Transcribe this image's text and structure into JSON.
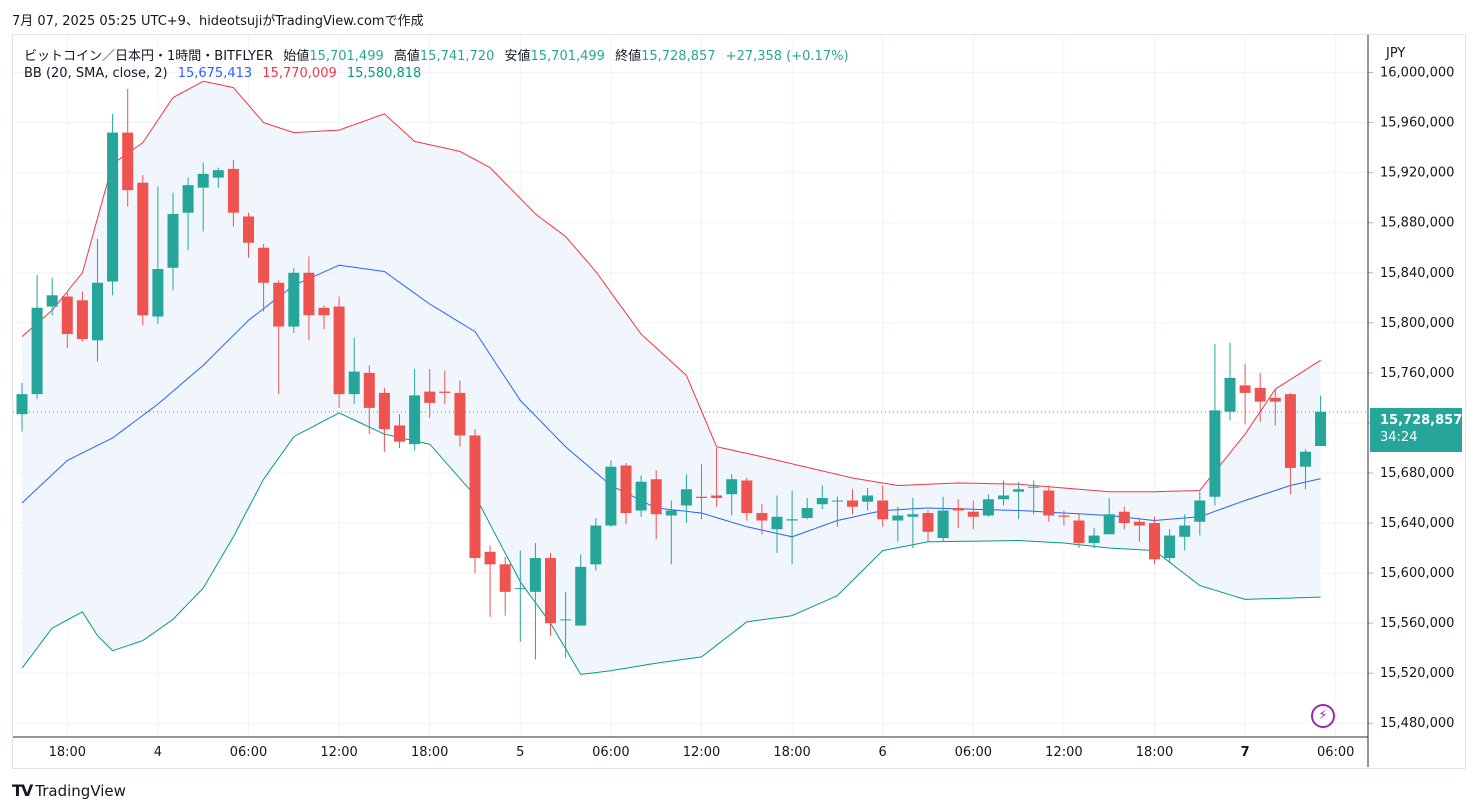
{
  "header": {
    "caption": "7月 07, 2025 05:25 UTC+9、hideotsujiがTradingView.comで作成"
  },
  "legend": {
    "symbol": "ビットコイン／日本円・1時間・BITFLYER",
    "open_label": "始値",
    "open_value": "15,701,499",
    "high_label": "高値",
    "high_value": "15,741,720",
    "low_label": "安値",
    "low_value": "15,701,499",
    "close_label": "終値",
    "close_value": "15,728,857",
    "change": "+27,358 (+0.17%)"
  },
  "indicator": {
    "label": "BB (20, SMA, close, 2)",
    "basis": "15,675,413",
    "upper": "15,770,009",
    "lower": "15,580,818"
  },
  "currency": "JPY",
  "last_price_tag": {
    "price": "15,728,857",
    "countdown": "34:24"
  },
  "footer": {
    "brand": "TradingView",
    "logo_icon": "tradingview-logo-icon"
  },
  "colors": {
    "up": "#26a69a",
    "down": "#ef5350",
    "basis": "#2962ff",
    "upper": "#f23645",
    "lower": "#089981",
    "band_fill": "#eef4fb"
  },
  "chart_data": {
    "type": "candlestick",
    "symbol": "BTC/JPY",
    "interval": "1h",
    "x_axis": {
      "labels": [
        "18:00",
        "4",
        "06:00",
        "12:00",
        "18:00",
        "5",
        "06:00",
        "12:00",
        "18:00",
        "6",
        "06:00",
        "12:00",
        "18:00",
        "7",
        "06:00"
      ],
      "label_index": [
        3,
        9,
        15,
        21,
        27,
        33,
        39,
        45,
        51,
        57,
        63,
        69,
        75,
        81,
        87
      ],
      "bold": [
        "7"
      ]
    },
    "y_axis": {
      "ticks": [
        16000000,
        15960000,
        15920000,
        15880000,
        15840000,
        15800000,
        15760000,
        15720000,
        15680000,
        15640000,
        15600000,
        15560000,
        15520000,
        15480000
      ],
      "tick_labels": [
        "16,000,000",
        "15,960,000",
        "15,920,000",
        "15,880,000",
        "15,840,000",
        "15,800,000",
        "15,760,000",
        "",
        "15,680,000",
        "15,640,000",
        "15,600,000",
        "15,560,000",
        "15,520,000",
        "15,480,000"
      ],
      "ylim": [
        15469000,
        16030000
      ],
      "side": "right"
    },
    "grid": true,
    "last_price_line": 15728857,
    "candles": [
      [
        15727000,
        15743000,
        15752000,
        15713000
      ],
      [
        15743000,
        15812000,
        15838000,
        15739000
      ],
      [
        15813000,
        15822000,
        15836000,
        15806000
      ],
      [
        15821000,
        15791000,
        15824000,
        15780000
      ],
      [
        15818000,
        15787000,
        15825000,
        15785000
      ],
      [
        15786000,
        15832000,
        15867000,
        15769000
      ],
      [
        15833000,
        15952000,
        15967000,
        15822000
      ],
      [
        15952000,
        15906000,
        15987000,
        15893000
      ],
      [
        15912000,
        15806000,
        15918000,
        15798000
      ],
      [
        15805000,
        15843000,
        15909000,
        15799000
      ],
      [
        15844000,
        15887000,
        15904000,
        15826000
      ],
      [
        15888000,
        15910000,
        15916000,
        15858000
      ],
      [
        15908000,
        15919000,
        15928000,
        15873000
      ],
      [
        15916000,
        15922000,
        15924000,
        15908000
      ],
      [
        15923000,
        15888000,
        15930000,
        15877000
      ],
      [
        15885000,
        15864000,
        15888000,
        15852000
      ],
      [
        15860000,
        15832000,
        15863000,
        15809000
      ],
      [
        15832000,
        15797000,
        15834000,
        15743000
      ],
      [
        15797000,
        15840000,
        15844000,
        15792000
      ],
      [
        15840000,
        15806000,
        15853000,
        15786000
      ],
      [
        15812000,
        15806000,
        15814000,
        15795000
      ],
      [
        15813000,
        15743000,
        15821000,
        15732000
      ],
      [
        15743000,
        15761000,
        15788000,
        15735000
      ],
      [
        15760000,
        15732000,
        15766000,
        15711000
      ],
      [
        15744000,
        15715000,
        15748000,
        15697000
      ],
      [
        15718000,
        15705000,
        15727000,
        15700000
      ],
      [
        15703000,
        15742000,
        15763000,
        15698000
      ],
      [
        15745000,
        15736000,
        15763000,
        15724000
      ],
      [
        15745000,
        15744000,
        15762000,
        15735000
      ],
      [
        15744000,
        15710000,
        15754000,
        15701000
      ],
      [
        15710000,
        15612000,
        15715000,
        15600000
      ],
      [
        15617000,
        15607000,
        15622000,
        15565000
      ],
      [
        15607000,
        15585000,
        15613000,
        15566000
      ],
      [
        15588000,
        15588000,
        15618000,
        15545000
      ],
      [
        15585000,
        15612000,
        15624000,
        15531000
      ],
      [
        15612000,
        15560000,
        15616000,
        15550000
      ],
      [
        15563000,
        15563000,
        15585000,
        15532000
      ],
      [
        15558000,
        15605000,
        15615000,
        15558000
      ],
      [
        15607000,
        15638000,
        15644000,
        15602000
      ],
      [
        15638000,
        15685000,
        15690000,
        15637000
      ],
      [
        15686000,
        15648000,
        15688000,
        15639000
      ],
      [
        15650000,
        15673000,
        15678000,
        15645000
      ],
      [
        15675000,
        15647000,
        15682000,
        15627000
      ],
      [
        15646000,
        15650000,
        15658000,
        15607000
      ],
      [
        15654000,
        15667000,
        15679000,
        15640000
      ],
      [
        15661000,
        15660000,
        15687000,
        15643000
      ],
      [
        15662000,
        15660000,
        15700000,
        15653000
      ],
      [
        15663000,
        15675000,
        15679000,
        15646000
      ],
      [
        15674000,
        15648000,
        15676000,
        15642000
      ],
      [
        15648000,
        15642000,
        15655000,
        15631000
      ],
      [
        15635000,
        15645000,
        15662000,
        15616000
      ],
      [
        15642000,
        15643000,
        15666000,
        15607000
      ],
      [
        15644000,
        15652000,
        15660000,
        15643000
      ],
      [
        15655000,
        15660000,
        15670000,
        15651000
      ],
      [
        15658000,
        15658000,
        15661000,
        15637000
      ],
      [
        15658000,
        15653000,
        15667000,
        15647000
      ],
      [
        15657000,
        15662000,
        15668000,
        15650000
      ],
      [
        15658000,
        15643000,
        15670000,
        15637000
      ],
      [
        15642000,
        15646000,
        15653000,
        15625000
      ],
      [
        15645000,
        15647000,
        15660000,
        15620000
      ],
      [
        15648000,
        15633000,
        15650000,
        15625000
      ],
      [
        15628000,
        15650000,
        15661000,
        15625000
      ],
      [
        15652000,
        15650000,
        15659000,
        15636000
      ],
      [
        15649000,
        15645000,
        15658000,
        15635000
      ],
      [
        15646000,
        15659000,
        15663000,
        15645000
      ],
      [
        15659000,
        15662000,
        15674000,
        15654000
      ],
      [
        15665000,
        15667000,
        15673000,
        15643000
      ],
      [
        15669000,
        15669000,
        15674000,
        15647000
      ],
      [
        15666000,
        15646000,
        15670000,
        15641000
      ],
      [
        15646000,
        15645000,
        15650000,
        15638000
      ],
      [
        15642000,
        15624000,
        15648000,
        15620000
      ],
      [
        15624000,
        15630000,
        15636000,
        15620000
      ],
      [
        15631000,
        15647000,
        15660000,
        15631000
      ],
      [
        15649000,
        15640000,
        15653000,
        15635000
      ],
      [
        15641000,
        15638000,
        15644000,
        15625000
      ],
      [
        15640000,
        15611000,
        15645000,
        15607000
      ],
      [
        15612000,
        15630000,
        15635000,
        15608000
      ],
      [
        15629000,
        15638000,
        15647000,
        15618000
      ],
      [
        15641000,
        15658000,
        15665000,
        15630000
      ],
      [
        15661000,
        15730000,
        15783000,
        15654000
      ],
      [
        15729000,
        15756000,
        15784000,
        15722000
      ],
      [
        15750000,
        15744000,
        15767000,
        15719000
      ],
      [
        15748000,
        15737000,
        15760000,
        15721000
      ],
      [
        15740000,
        15737000,
        15747000,
        15718000
      ],
      [
        15743000,
        15684000,
        15744000,
        15663000
      ],
      [
        15685000,
        15697000,
        15699000,
        15667000
      ],
      [
        15701499,
        15728857,
        15741720,
        15701499
      ]
    ],
    "bollinger": {
      "period": 20,
      "ma_type": "SMA",
      "source": "close",
      "stdev": 2,
      "basis": [
        [
          0,
          15656000
        ],
        [
          3,
          15690000
        ],
        [
          6,
          15708000
        ],
        [
          9,
          15735000
        ],
        [
          12,
          15766000
        ],
        [
          15,
          15802000
        ],
        [
          18,
          15830000
        ],
        [
          21,
          15846000
        ],
        [
          24,
          15841000
        ],
        [
          27,
          15815000
        ],
        [
          30,
          15793000
        ],
        [
          33,
          15738000
        ],
        [
          36,
          15701000
        ],
        [
          39,
          15670000
        ],
        [
          42,
          15652000
        ],
        [
          45,
          15648000
        ],
        [
          48,
          15637000
        ],
        [
          51,
          15629000
        ],
        [
          54,
          15642000
        ],
        [
          57,
          15650000
        ],
        [
          60,
          15652000
        ],
        [
          63,
          15651000
        ],
        [
          66,
          15650000
        ],
        [
          69,
          15648000
        ],
        [
          72,
          15646000
        ],
        [
          75,
          15642000
        ],
        [
          78,
          15645000
        ],
        [
          81,
          15658000
        ],
        [
          84,
          15670000
        ],
        [
          86,
          15675413
        ]
      ],
      "upper": [
        [
          0,
          15789000
        ],
        [
          2,
          15810000
        ],
        [
          4,
          15840000
        ],
        [
          6,
          15927000
        ],
        [
          8,
          15944000
        ],
        [
          10,
          15980000
        ],
        [
          12,
          15993000
        ],
        [
          14,
          15988000
        ],
        [
          16,
          15960000
        ],
        [
          18,
          15952000
        ],
        [
          21,
          15954000
        ],
        [
          24,
          15967000
        ],
        [
          26,
          15945000
        ],
        [
          29,
          15937000
        ],
        [
          31,
          15924000
        ],
        [
          34,
          15887000
        ],
        [
          36,
          15869000
        ],
        [
          38,
          15841000
        ],
        [
          41,
          15791000
        ],
        [
          44,
          15758000
        ],
        [
          46,
          15701000
        ],
        [
          49,
          15693000
        ],
        [
          55,
          15676000
        ],
        [
          58,
          15670000
        ],
        [
          62,
          15672000
        ],
        [
          66,
          15671000
        ],
        [
          69,
          15668000
        ],
        [
          72,
          15665000
        ],
        [
          75,
          15665000
        ],
        [
          78,
          15666000
        ],
        [
          81,
          15711000
        ],
        [
          83,
          15747000
        ],
        [
          86,
          15770009
        ]
      ],
      "lower": [
        [
          0,
          15524000
        ],
        [
          2,
          15556000
        ],
        [
          4,
          15569000
        ],
        [
          5,
          15550000
        ],
        [
          6,
          15538000
        ],
        [
          8,
          15546000
        ],
        [
          10,
          15563000
        ],
        [
          12,
          15588000
        ],
        [
          14,
          15629000
        ],
        [
          16,
          15675000
        ],
        [
          18,
          15709000
        ],
        [
          21,
          15728000
        ],
        [
          24,
          15711000
        ],
        [
          27,
          15703000
        ],
        [
          30,
          15662000
        ],
        [
          33,
          15593000
        ],
        [
          35,
          15560000
        ],
        [
          37,
          15519000
        ],
        [
          39,
          15522000
        ],
        [
          42,
          15528000
        ],
        [
          45,
          15533000
        ],
        [
          48,
          15561000
        ],
        [
          51,
          15566000
        ],
        [
          54,
          15582000
        ],
        [
          57,
          15618000
        ],
        [
          60,
          15625000
        ],
        [
          66,
          15626000
        ],
        [
          69,
          15624000
        ],
        [
          72,
          15620000
        ],
        [
          75,
          15618000
        ],
        [
          78,
          15590000
        ],
        [
          81,
          15579000
        ],
        [
          84,
          15580000
        ],
        [
          86,
          15580818
        ]
      ]
    }
  }
}
